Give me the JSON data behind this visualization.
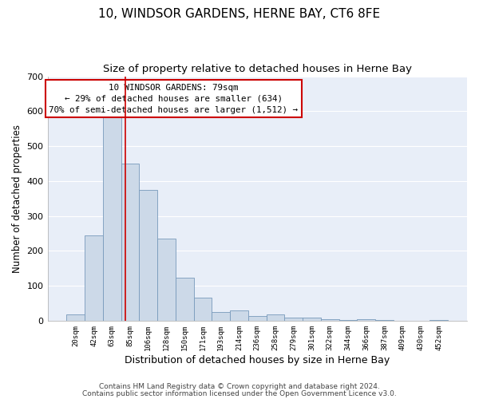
{
  "title": "10, WINDSOR GARDENS, HERNE BAY, CT6 8FE",
  "subtitle": "Size of property relative to detached houses in Herne Bay",
  "xlabel": "Distribution of detached houses by size in Herne Bay",
  "ylabel": "Number of detached properties",
  "bar_labels": [
    "20sqm",
    "42sqm",
    "63sqm",
    "85sqm",
    "106sqm",
    "128sqm",
    "150sqm",
    "171sqm",
    "193sqm",
    "214sqm",
    "236sqm",
    "258sqm",
    "279sqm",
    "301sqm",
    "322sqm",
    "344sqm",
    "366sqm",
    "387sqm",
    "409sqm",
    "430sqm",
    "452sqm"
  ],
  "bar_values": [
    18,
    245,
    585,
    450,
    375,
    235,
    122,
    67,
    25,
    30,
    13,
    17,
    8,
    9,
    5,
    3,
    4,
    3,
    0,
    0,
    2
  ],
  "bar_color": "#ccd9e8",
  "bar_edge_color": "#7799bb",
  "vline_x_pos": 2.72,
  "vline_color": "#cc0000",
  "ylim": [
    0,
    700
  ],
  "yticks": [
    0,
    100,
    200,
    300,
    400,
    500,
    600,
    700
  ],
  "annotation_title": "10 WINDSOR GARDENS: 79sqm",
  "annotation_line1": "← 29% of detached houses are smaller (634)",
  "annotation_line2": "70% of semi-detached houses are larger (1,512) →",
  "annotation_box_facecolor": "#ffffff",
  "annotation_box_edgecolor": "#cc0000",
  "footnote1": "Contains HM Land Registry data © Crown copyright and database right 2024.",
  "footnote2": "Contains public sector information licensed under the Open Government Licence v3.0.",
  "plot_bg_color": "#e8eef8",
  "fig_bg_color": "#ffffff",
  "grid_color": "#ffffff",
  "title_fontsize": 11,
  "subtitle_fontsize": 9.5,
  "xlabel_fontsize": 9,
  "ylabel_fontsize": 8.5,
  "footnote_fontsize": 6.5
}
